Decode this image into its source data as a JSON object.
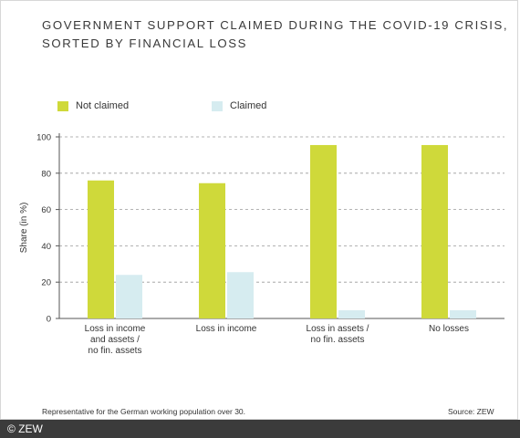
{
  "title_lines": [
    "GOVERNMENT SUPPORT CLAIMED DURING THE COVID-19 CRISIS,",
    "SORTED BY FINANCIAL LOSS"
  ],
  "footnote": "Representative for the German working population over 30.",
  "source": "Source: ZEW",
  "copyright": "© ZEW",
  "colors": {
    "not_claimed": "#cfd93a",
    "claimed": "#d6ecf0",
    "grid": "#9a9a9a",
    "axis": "#555555"
  },
  "chart_data": {
    "type": "bar",
    "title": "GOVERNMENT SUPPORT CLAIMED DURING THE COVID-19 CRISIS, SORTED BY FINANCIAL LOSS",
    "ylabel": "Share (in %)",
    "xlabel": "",
    "ylim": [
      0,
      100
    ],
    "yticks": [
      0,
      20,
      40,
      60,
      80,
      100
    ],
    "grid": true,
    "legend_position": "top",
    "categories": [
      [
        "Loss in income",
        "and assets /",
        "no fin. assets"
      ],
      [
        "Loss in income"
      ],
      [
        "Loss in assets /",
        "no fin. assets"
      ],
      [
        "No losses"
      ]
    ],
    "series": [
      {
        "name": "Not claimed",
        "values": [
          76,
          74.5,
          95.5,
          95.5
        ]
      },
      {
        "name": "Claimed",
        "values": [
          24,
          25.5,
          4.5,
          4.5
        ]
      }
    ]
  }
}
